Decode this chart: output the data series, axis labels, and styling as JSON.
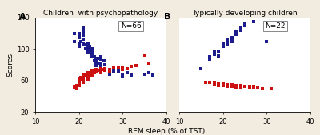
{
  "title_A": "Children  with psychopathology",
  "title_B": "Typically developing children",
  "label_A": "A",
  "label_B": "B",
  "annotation_A": "N=66",
  "annotation_B": "N=22",
  "xlabel": "REM sleep (% of TST)",
  "ylabel": "Scores",
  "xlim": [
    10,
    40
  ],
  "ylim": [
    20,
    140
  ],
  "xticks": [
    10,
    20,
    30,
    40
  ],
  "yticks": [
    20,
    60,
    100,
    140
  ],
  "blue": "#1c1c8c",
  "red": "#cc1111",
  "bg_color": "#f2ece0",
  "plot_bg": "#ffffff",
  "blue_A_x": [
    19,
    19,
    20,
    20,
    20,
    20,
    20,
    20.5,
    21,
    21,
    21,
    21,
    21,
    21,
    21.5,
    21.5,
    22,
    22,
    22,
    22,
    22,
    22.5,
    22.5,
    22.5,
    23,
    23,
    23,
    23,
    23.5,
    23.5,
    24,
    24,
    24,
    24,
    24.5,
    24.5,
    25,
    25,
    25,
    25,
    25.5,
    26,
    26,
    27,
    28,
    29,
    30,
    30,
    31,
    32,
    35,
    36,
    37
  ],
  "blue_A_y": [
    120,
    110,
    120,
    118,
    115,
    108,
    103,
    110,
    127,
    122,
    118,
    113,
    108,
    105,
    105,
    100,
    108,
    105,
    102,
    99,
    96,
    103,
    100,
    97,
    100,
    96,
    93,
    90,
    90,
    85,
    88,
    85,
    82,
    79,
    88,
    82,
    90,
    87,
    82,
    78,
    85,
    85,
    80,
    68,
    72,
    72,
    67,
    65,
    70,
    67,
    68,
    70,
    67
  ],
  "red_A_x": [
    19,
    19.5,
    19.5,
    20,
    20,
    20,
    20,
    20,
    20.5,
    20.5,
    21,
    21,
    21,
    21,
    21,
    21.5,
    21.5,
    22,
    22,
    22,
    22,
    22,
    22.5,
    22.5,
    23,
    23,
    23,
    23.5,
    23.5,
    24,
    24,
    24.5,
    25,
    25,
    25,
    25.5,
    26,
    26,
    27,
    27,
    28,
    29,
    30,
    30,
    31,
    32,
    33,
    35,
    36
  ],
  "red_A_y": [
    52,
    54,
    50,
    62,
    60,
    58,
    56,
    54,
    64,
    62,
    67,
    65,
    63,
    61,
    58,
    68,
    66,
    70,
    68,
    66,
    64,
    62,
    70,
    68,
    72,
    70,
    67,
    72,
    70,
    74,
    72,
    73,
    75,
    73,
    70,
    74,
    75,
    73,
    74,
    72,
    76,
    77,
    74,
    76,
    75,
    78,
    79,
    92,
    82
  ],
  "blue_B_x": [
    15,
    17,
    17,
    18,
    18,
    19,
    19,
    20,
    20,
    21,
    21,
    22,
    22,
    22,
    23,
    23,
    24,
    24,
    25,
    25,
    27,
    30
  ],
  "blue_B_y": [
    75,
    90,
    87,
    97,
    93,
    97,
    91,
    107,
    103,
    112,
    107,
    115,
    112,
    110,
    122,
    119,
    127,
    124,
    132,
    130,
    135,
    110
  ],
  "red_B_x": [
    16,
    17,
    18,
    18,
    19,
    19,
    20,
    20,
    21,
    21,
    22,
    22,
    23,
    23,
    24,
    24,
    25,
    26,
    27,
    28,
    29,
    31
  ],
  "red_B_y": [
    58,
    58,
    57,
    55,
    56,
    54,
    56,
    54,
    55,
    53,
    55,
    53,
    54,
    52,
    54,
    52,
    53,
    52,
    52,
    51,
    50,
    50
  ]
}
